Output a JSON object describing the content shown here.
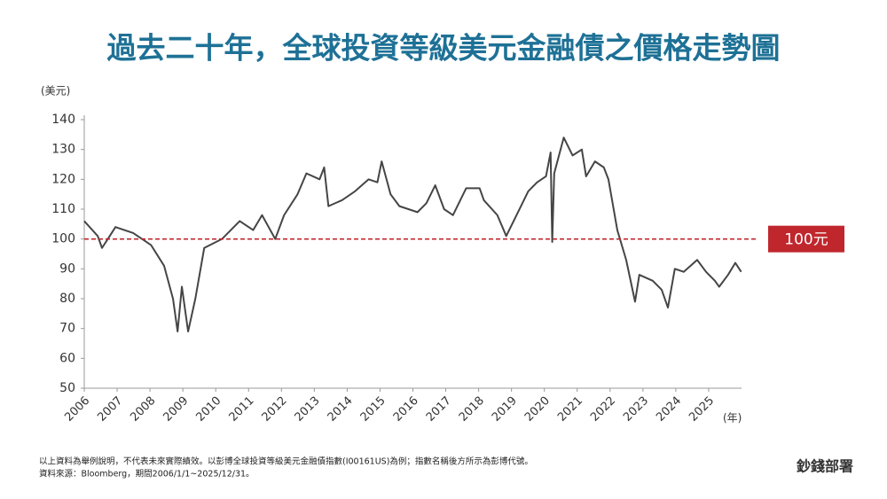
{
  "chart_data": {
    "type": "line",
    "title": "過去二十年，全球投資等級美元金融債之價格走勢圖",
    "y_axis_label": "(美元)",
    "x_axis_label": "(年)",
    "x": [
      2006.0,
      2006.41,
      2006.54,
      2006.95,
      2007.49,
      2007.76,
      2008.03,
      2008.43,
      2008.7,
      2008.84,
      2008.97,
      2009.16,
      2009.38,
      2009.65,
      2010.19,
      2010.73,
      2011.14,
      2011.41,
      2011.81,
      2012.08,
      2012.49,
      2012.76,
      2013.16,
      2013.3,
      2013.43,
      2013.84,
      2014.24,
      2014.65,
      2014.92,
      2015.05,
      2015.32,
      2015.59,
      2016.14,
      2016.41,
      2016.68,
      2016.95,
      2017.22,
      2017.62,
      2018.03,
      2018.16,
      2018.57,
      2018.84,
      2019.11,
      2019.51,
      2019.78,
      2020.05,
      2020.19,
      2020.24,
      2020.3,
      2020.59,
      2020.86,
      2021.14,
      2021.27,
      2021.54,
      2021.81,
      2021.95,
      2022.22,
      2022.49,
      2022.76,
      2022.89,
      2023.3,
      2023.57,
      2023.76,
      2023.97,
      2024.24,
      2024.65,
      2024.92,
      2025.19,
      2025.32,
      2025.59,
      2025.81,
      2025.99
    ],
    "series": [
      {
        "color": "#454545",
        "values": [
          106,
          101,
          97,
          104,
          102,
          100,
          98,
          91,
          80,
          69,
          84,
          69,
          80,
          97,
          100,
          106,
          103,
          108,
          100,
          108,
          115,
          122,
          120,
          124,
          111,
          113,
          116,
          120,
          119,
          126,
          115,
          111,
          109,
          112,
          118,
          110,
          108,
          117,
          117,
          113,
          108,
          101,
          107,
          116,
          119,
          121,
          129,
          99,
          122,
          134,
          128,
          130,
          121,
          126,
          124,
          120,
          103,
          93,
          79,
          88,
          86,
          83,
          77,
          90,
          89,
          93,
          89,
          86,
          84,
          88,
          92,
          89
        ]
      }
    ],
    "xlim": [
      2006,
      2026
    ],
    "xticks": [
      2006,
      2007,
      2008,
      2009,
      2010,
      2011,
      2012,
      2013,
      2014,
      2015,
      2016,
      2017,
      2018,
      2019,
      2020,
      2021,
      2022,
      2023,
      2024,
      2025
    ],
    "ylim": [
      50,
      140
    ],
    "yticks": [
      50,
      60,
      70,
      80,
      90,
      100,
      110,
      120,
      130,
      140
    ],
    "reference_line": {
      "value": 100,
      "label": "100元",
      "color": "#c0272d"
    },
    "footnotes": [
      "以上資料為舉例說明，不代表未來實際績效。以彭博全球投資等級美元金融債指數(I00161US)為例；指數名稱後方所示為彭博代號。",
      "資料來源：Bloomberg，期間2006/1/1~2025/12/31。"
    ],
    "logo": "鈔錢部署"
  }
}
